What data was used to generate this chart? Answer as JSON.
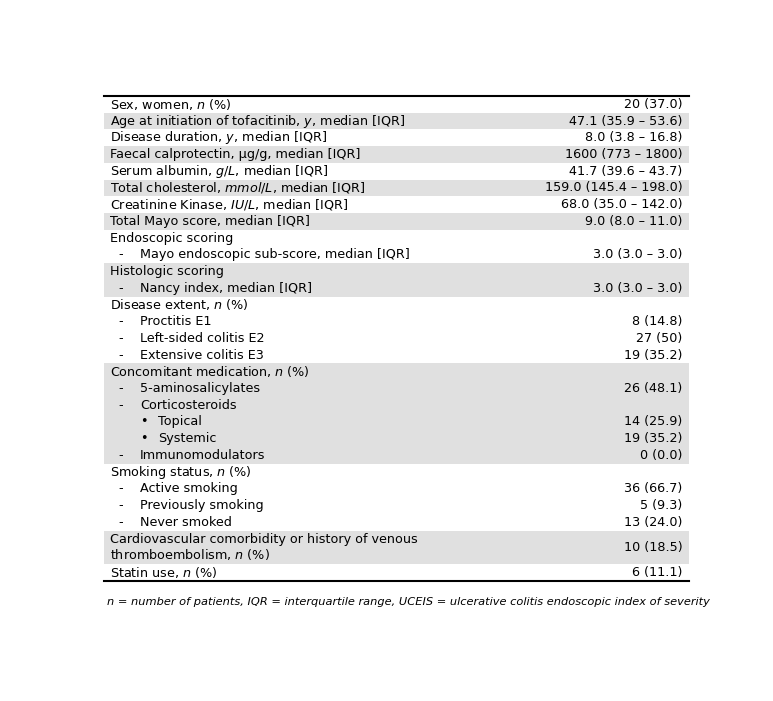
{
  "footnote": "n = number of patients, IQR = interquartile range, UCEIS = ulcerative colitis endoscopic index of severity",
  "rows": [
    {
      "label": "Sex, women, $n$ (%)",
      "value": "20 (37.0)",
      "indent": 0,
      "shaded": false,
      "bullet": ""
    },
    {
      "label": "Age at initiation of tofacitinib, $y$, median [IQR]",
      "value": "47.1 (35.9 – 53.6)",
      "indent": 0,
      "shaded": true,
      "bullet": ""
    },
    {
      "label": "Disease duration, $y$, median [IQR]",
      "value": "8.0 (3.8 – 16.8)",
      "indent": 0,
      "shaded": false,
      "bullet": ""
    },
    {
      "label": "Faecal calprotectin, μg/g, median [IQR]",
      "value": "1600 (773 – 1800)",
      "indent": 0,
      "shaded": true,
      "bullet": ""
    },
    {
      "label": "Serum albumin, $g/L$, median [IQR]",
      "value": "41.7 (39.6 – 43.7)",
      "indent": 0,
      "shaded": false,
      "bullet": ""
    },
    {
      "label": "Total cholesterol, $mmol/L$, median [IQR]",
      "value": "159.0 (145.4 – 198.0)",
      "indent": 0,
      "shaded": true,
      "bullet": ""
    },
    {
      "label": "Creatinine Kinase, $IU/L$, median [IQR]",
      "value": "68.0 (35.0 – 142.0)",
      "indent": 0,
      "shaded": false,
      "bullet": ""
    },
    {
      "label": "Total Mayo score, median [IQR]",
      "value": "9.0 (8.0 – 11.0)",
      "indent": 0,
      "shaded": true,
      "bullet": ""
    },
    {
      "label": "Endoscopic scoring",
      "value": "",
      "indent": 0,
      "shaded": false,
      "bullet": ""
    },
    {
      "label": "Mayo endoscopic sub-score, median [IQR]",
      "value": "3.0 (3.0 – 3.0)",
      "indent": 1,
      "shaded": false,
      "bullet": "-"
    },
    {
      "label": "Histologic scoring",
      "value": "",
      "indent": 0,
      "shaded": true,
      "bullet": ""
    },
    {
      "label": "Nancy index, median [IQR]",
      "value": "3.0 (3.0 – 3.0)",
      "indent": 1,
      "shaded": true,
      "bullet": "-"
    },
    {
      "label": "Disease extent, $n$ (%)",
      "value": "",
      "indent": 0,
      "shaded": false,
      "bullet": ""
    },
    {
      "label": "Proctitis E1",
      "value": "8 (14.8)",
      "indent": 1,
      "shaded": false,
      "bullet": "-"
    },
    {
      "label": "Left-sided colitis E2",
      "value": "27 (50)",
      "indent": 1,
      "shaded": false,
      "bullet": "-"
    },
    {
      "label": "Extensive colitis E3",
      "value": "19 (35.2)",
      "indent": 1,
      "shaded": false,
      "bullet": "-"
    },
    {
      "label": "Concomitant medication, $n$ (%)",
      "value": "",
      "indent": 0,
      "shaded": true,
      "bullet": ""
    },
    {
      "label": "5-aminosalicylates",
      "value": "26 (48.1)",
      "indent": 1,
      "shaded": true,
      "bullet": "-"
    },
    {
      "label": "Corticosteroids",
      "value": "",
      "indent": 1,
      "shaded": true,
      "bullet": "-"
    },
    {
      "label": "Topical",
      "value": "14 (25.9)",
      "indent": 2,
      "shaded": true,
      "bullet": "•"
    },
    {
      "label": "Systemic",
      "value": "19 (35.2)",
      "indent": 2,
      "shaded": true,
      "bullet": "•"
    },
    {
      "label": "Immunomodulators",
      "value": "0 (0.0)",
      "indent": 1,
      "shaded": true,
      "bullet": "-"
    },
    {
      "label": "Smoking status, $n$ (%)",
      "value": "",
      "indent": 0,
      "shaded": false,
      "bullet": ""
    },
    {
      "label": "Active smoking",
      "value": "36 (66.7)",
      "indent": 1,
      "shaded": false,
      "bullet": "-"
    },
    {
      "label": "Previously smoking",
      "value": "5 (9.3)",
      "indent": 1,
      "shaded": false,
      "bullet": "-"
    },
    {
      "label": "Never smoked",
      "value": "13 (24.0)",
      "indent": 1,
      "shaded": false,
      "bullet": "-"
    },
    {
      "label": "Cardiovascular comorbidity or history of venous\nthromboembolism, $n$ (%)",
      "value": "10 (18.5)",
      "indent": 0,
      "shaded": true,
      "bullet": "",
      "multiline": true
    },
    {
      "label": "Statin use, $n$ (%)",
      "value": "6 (11.1)",
      "indent": 0,
      "shaded": false,
      "bullet": ""
    }
  ],
  "shaded_color": "#e0e0e0",
  "white_color": "#ffffff",
  "border_color": "#000000",
  "text_color": "#000000",
  "fontsize": 9.2,
  "footnote_fontsize": 8.2
}
